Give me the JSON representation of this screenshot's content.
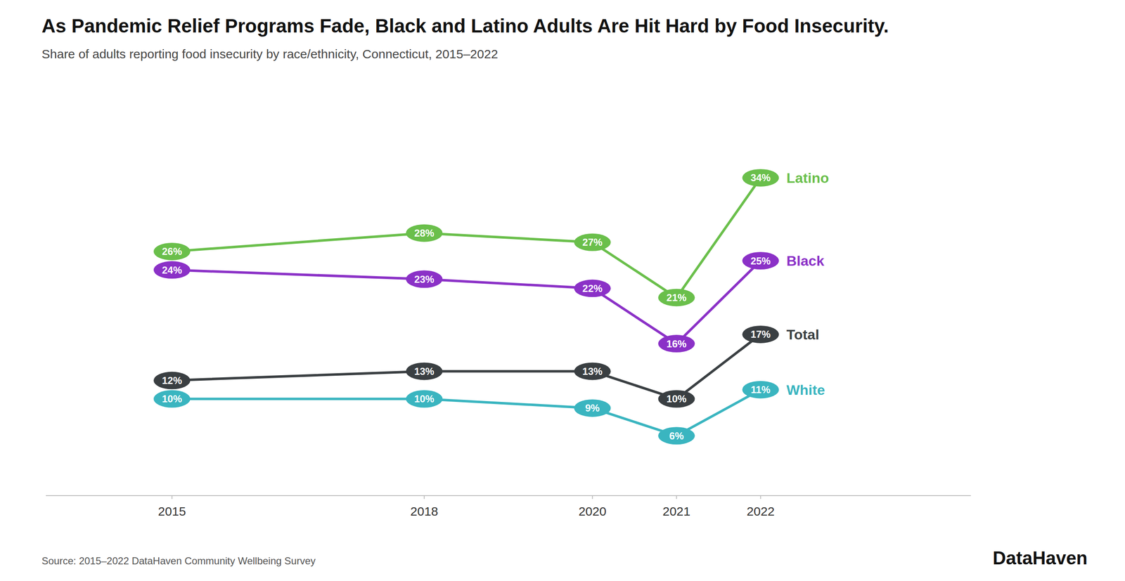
{
  "chart_data": {
    "type": "line",
    "title": "As Pandemic Relief Programs Fade, Black and Latino Adults Are Hit Hard by Food Insecurity.",
    "subtitle": "Share of adults reporting food insecurity by race/ethnicity, Connecticut, 2015–2022",
    "annotations": [
      "Source: 2015–2022 DataHaven Community Wellbeing Survey",
      "DataHaven"
    ],
    "x": [
      2015,
      2018,
      2020,
      2021,
      2022
    ],
    "series": [
      {
        "name": "Latino",
        "color": "#6abf4b",
        "values": [
          26,
          28,
          27,
          21,
          34
        ],
        "value_labels": [
          "26%",
          "28%",
          "27%",
          "21%",
          "34%"
        ]
      },
      {
        "name": "Black",
        "color": "#8b31c7",
        "values": [
          24,
          23,
          22,
          16,
          25
        ],
        "value_labels": [
          "24%",
          "23%",
          "22%",
          "16%",
          "25%"
        ]
      },
      {
        "name": "Total",
        "color": "#3a3f42",
        "values": [
          12,
          13,
          13,
          10,
          17
        ],
        "value_labels": [
          "12%",
          "13%",
          "13%",
          "10%",
          "17%"
        ]
      },
      {
        "name": "White",
        "color": "#3ab5c0",
        "values": [
          10,
          10,
          9,
          6,
          11
        ],
        "value_labels": [
          "10%",
          "10%",
          "9%",
          "6%",
          "11%"
        ]
      }
    ],
    "xlim": [
      2013.5,
      2024.5
    ],
    "xticks": [
      2015,
      2018,
      2020,
      2021,
      2022
    ],
    "ylim": [
      -0.5,
      42
    ],
    "grid": false,
    "data_labels": true,
    "tick_labels": "x",
    "marker": "ellipse"
  }
}
